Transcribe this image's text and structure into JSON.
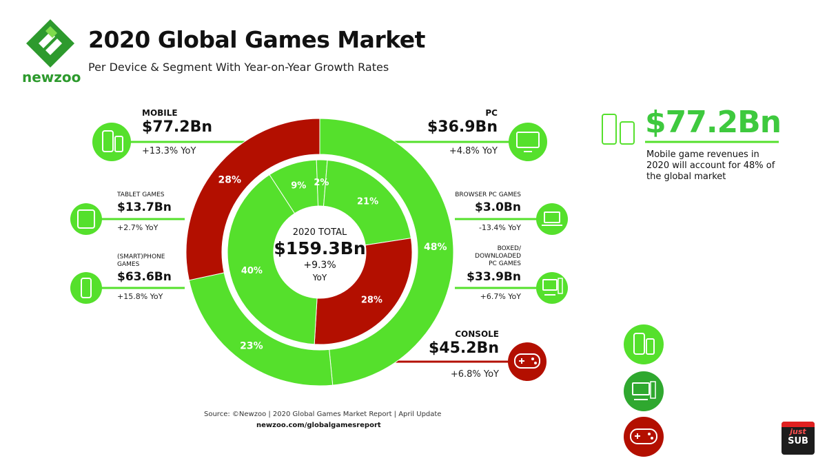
{
  "header": {
    "brand": "newzoo",
    "title": "2020 Global Games Market",
    "subtitle": "Per Device & Segment With Year-on-Year Growth Rates"
  },
  "center": {
    "label": "2020 TOTAL",
    "value": "$159.3Bn",
    "growth": "+9.3%",
    "growth_unit": "YoY"
  },
  "segments": {
    "mobile": {
      "name": "MOBILE",
      "value": "$77.2Bn",
      "yoy": "+13.3% YoY"
    },
    "pc": {
      "name": "PC",
      "value": "$36.9Bn",
      "yoy": "+4.8% YoY"
    },
    "tablet": {
      "name": "TABLET GAMES",
      "value": "$13.7Bn",
      "yoy": "+2.7% YoY"
    },
    "phone": {
      "name_line1": "(SMART)PHONE",
      "name_line2": "GAMES",
      "value": "$63.6Bn",
      "yoy": "+15.8% YoY"
    },
    "browser": {
      "name": "BROWSER PC GAMES",
      "value": "$3.0Bn",
      "yoy": "-13.4% YoY"
    },
    "boxed": {
      "name_line1": "BOXED/",
      "name_line2": "DOWNLOADED",
      "name_line3": "PC GAMES",
      "value": "$33.9Bn",
      "yoy": "+6.7% YoY"
    },
    "console": {
      "name": "CONSOLE",
      "value": "$45.2Bn",
      "yoy": "+6.8% YoY"
    }
  },
  "callout": {
    "value": "$77.2Bn",
    "text": "Mobile game revenues in 2020 will account for 48% of the global market"
  },
  "footer": {
    "source": "Source: ©Newzoo | 2020 Global Games Market Report | April Update",
    "url": "newzoo.com/globalgamesreport"
  },
  "watermark": {
    "line1": "just",
    "line2": "SUB"
  },
  "colors": {
    "green": "#55e02c",
    "red": "#b30f00",
    "dark_red": "#8a0c00",
    "accent_green": "#3ec93e",
    "logo_green": "#2d9a2d"
  },
  "chart_data": {
    "type": "pie",
    "title": "2020 Global Games Market",
    "subtitle": "Per Device & Segment With Year-on-Year Growth Rates",
    "total": {
      "label": "2020 TOTAL",
      "value": 159.3,
      "unit": "$Bn",
      "yoy_percent": 9.3
    },
    "outer_ring": [
      {
        "name": "MOBILE",
        "value": 77.2,
        "percent": 48,
        "yoy_percent": 13.3,
        "color": "#55e02c"
      },
      {
        "name": "PC",
        "value": 36.9,
        "percent": 23,
        "yoy_percent": 4.8,
        "color": "#55e02c"
      },
      {
        "name": "CONSOLE",
        "value": 45.2,
        "percent": 28,
        "yoy_percent": 6.8,
        "color": "#b30f00"
      }
    ],
    "inner_ring": [
      {
        "name": "(SMART)PHONE GAMES",
        "value": 63.6,
        "percent": 40,
        "yoy_percent": 15.8,
        "color": "#55e02c"
      },
      {
        "name": "TABLET GAMES",
        "value": 13.7,
        "percent": 9,
        "yoy_percent": 2.7,
        "color": "#55e02c"
      },
      {
        "name": "BROWSER PC GAMES",
        "value": 3.0,
        "percent": 2,
        "yoy_percent": -13.4,
        "color": "#55e02c"
      },
      {
        "name": "BOXED/DOWNLOADED PC GAMES",
        "value": 33.9,
        "percent": 21,
        "yoy_percent": 6.7,
        "color": "#55e02c"
      },
      {
        "name": "CONSOLE",
        "value": 45.2,
        "percent": 28,
        "yoy_percent": 6.8,
        "color": "#b30f00"
      }
    ]
  }
}
